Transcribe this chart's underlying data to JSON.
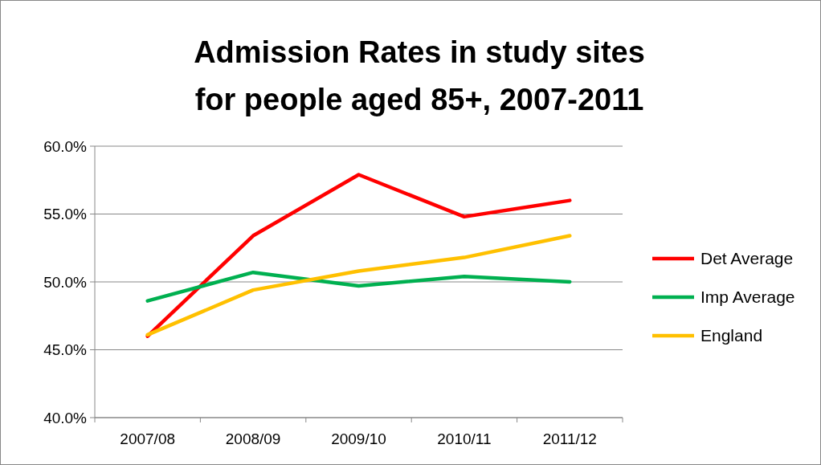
{
  "chart_data": {
    "type": "line",
    "title": "Admission Rates in study sites for people aged 85+, 2007-2011",
    "categories": [
      "2007/08",
      "2008/09",
      "2009/10",
      "2010/11",
      "2011/12"
    ],
    "series": [
      {
        "name": "Det Average",
        "color": "#ff0000",
        "values": [
          46.0,
          53.4,
          57.9,
          54.8,
          56.0
        ]
      },
      {
        "name": "Imp Average",
        "color": "#00b050",
        "values": [
          48.6,
          50.7,
          49.7,
          50.4,
          50.0
        ]
      },
      {
        "name": "England",
        "color": "#ffc000",
        "values": [
          46.1,
          49.4,
          50.8,
          51.8,
          53.4
        ]
      }
    ],
    "ylim": [
      40,
      60
    ],
    "yticks": [
      {
        "value": 40,
        "label": "40.0%"
      },
      {
        "value": 45,
        "label": "45.0%"
      },
      {
        "value": 50,
        "label": "50.0%"
      },
      {
        "value": 55,
        "label": "55.0%"
      },
      {
        "value": 60,
        "label": "60.0%"
      }
    ],
    "grid": "y",
    "legend": "right",
    "marker": "none",
    "line_style": "solid"
  }
}
